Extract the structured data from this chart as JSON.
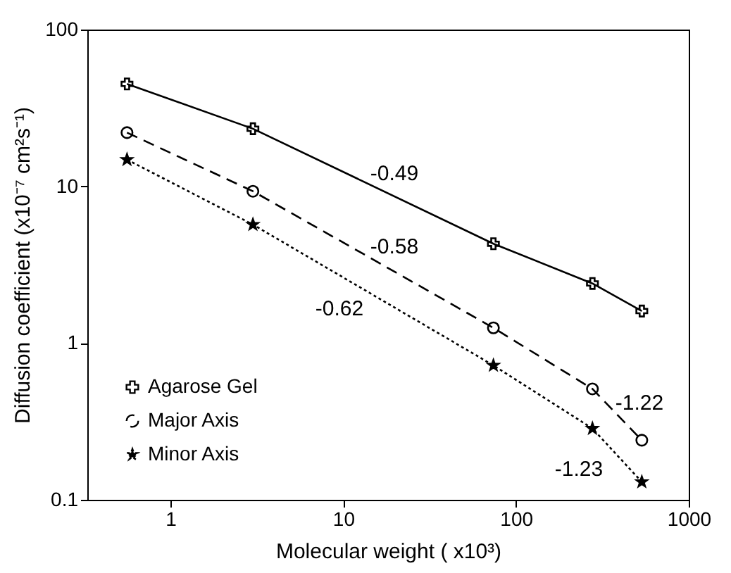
{
  "chart_data": {
    "type": "line",
    "xlabel": "Molecular weight ( x10³)",
    "ylabel": "Diffusion coefficient (x10⁻⁷ cm²s⁻¹)",
    "log": "xy",
    "xlim": [
      0.33,
      1000
    ],
    "xticks": [
      1,
      10,
      100,
      1000
    ],
    "ylim": [
      0.1,
      100
    ],
    "yticks": [
      0.1,
      1,
      10,
      100
    ],
    "x": [
      0.56,
      3.0,
      74,
      277,
      535
    ],
    "series": [
      {
        "name": "Agarose Gel",
        "color": "#000000",
        "values": [
          45,
          23.3,
          4.3,
          2.4,
          1.6
        ],
        "marker": "cross",
        "line_style": "solid"
      },
      {
        "name": "Major Axis",
        "color": "#000000",
        "values": [
          22,
          9.3,
          1.25,
          0.51,
          0.24
        ],
        "marker": "circle",
        "line_style": "dashed"
      },
      {
        "name": "Minor Axis",
        "color": "#000000",
        "values": [
          14.8,
          5.7,
          0.72,
          0.285,
          0.13
        ],
        "marker": "star",
        "line_style": "dotted"
      }
    ],
    "annotations": [
      "-0.49",
      "-0.58",
      "-0.62",
      "-1.22",
      "-1.23"
    ],
    "grid": false,
    "legend": "bottom left"
  }
}
